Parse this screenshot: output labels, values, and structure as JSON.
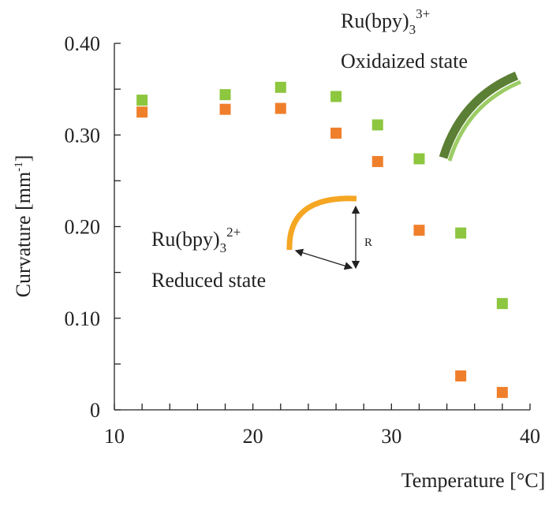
{
  "chart_data": {
    "type": "scatter",
    "xlabel": "Temperature [°C]",
    "ylabel": {
      "base": "Curvature [mm",
      "sup": "-1",
      "tail": "]"
    },
    "x": [
      12,
      18,
      22,
      26,
      29,
      32,
      35,
      38
    ],
    "series": [
      {
        "name": "Ru(bpy)3 3+ / oxidized",
        "color": "#8dc63f",
        "values": [
          0.338,
          0.344,
          0.352,
          0.342,
          0.311,
          0.274,
          0.193,
          0.116
        ]
      },
      {
        "name": "Ru(bpy)3 2+ / reduced",
        "color": "#f07f2c",
        "values": [
          0.325,
          0.328,
          0.329,
          0.302,
          0.271,
          0.196,
          0.037,
          0.019
        ]
      }
    ],
    "xlim": [
      10,
      40
    ],
    "xticks": [
      10,
      20,
      30,
      40
    ],
    "xminor": [
      12,
      14,
      16,
      18,
      22,
      24,
      26,
      28,
      32,
      34,
      36,
      38
    ],
    "ylim": [
      0,
      0.4
    ],
    "yticks": [
      0,
      {
        "value": 0.1,
        "label": "0.10"
      },
      {
        "value": 0.2,
        "label": "0.20"
      },
      {
        "value": 0.3,
        "label": "0.30"
      },
      {
        "value": 0.4,
        "label": "0.40"
      }
    ],
    "yminor": [
      0.05,
      0.15,
      0.25,
      0.35
    ],
    "annotations": {
      "oxidized": {
        "base": "Ru(bpy)",
        "sub": "3",
        "sup": "3+",
        "state": "Oxidaized state"
      },
      "reduced": {
        "base": "Ru(bpy)",
        "sub": "3",
        "sup": "2+",
        "state": "Reduced state"
      },
      "radius": "R"
    }
  }
}
